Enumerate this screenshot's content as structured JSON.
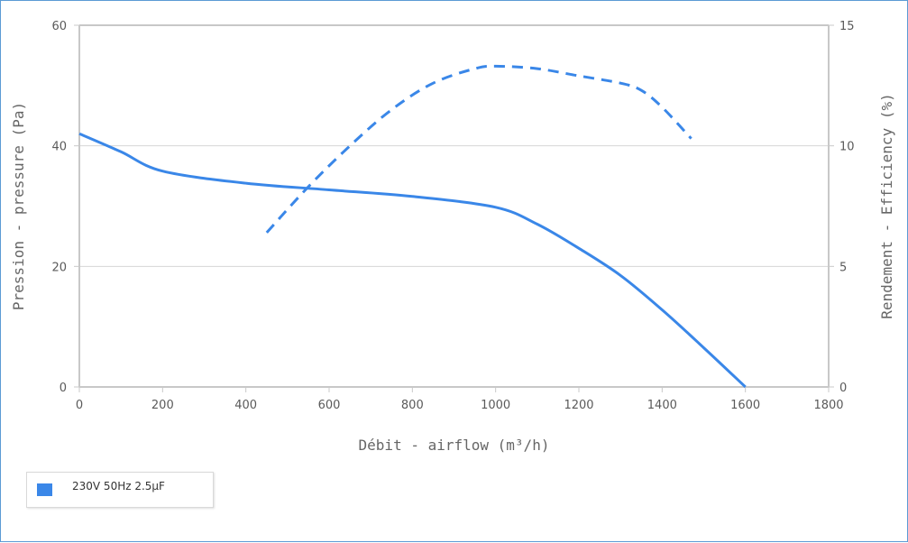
{
  "chart_data": {
    "type": "line",
    "xlabel": "Débit - airflow (m³/h)",
    "ylabel": "Pression - pressure (Pa)",
    "y2label": "Rendement - Efficiency (%)",
    "xlim": [
      0,
      1800
    ],
    "ylim": [
      0,
      60
    ],
    "y2lim": [
      0,
      15
    ],
    "x_ticks": [
      "0",
      "200",
      "400",
      "600",
      "800",
      "1000",
      "1200",
      "1400",
      "1600",
      "1800"
    ],
    "y_ticks": [
      "0",
      "20",
      "40",
      "60"
    ],
    "y2_ticks": [
      "0",
      "5",
      "10",
      "15"
    ],
    "grid": true,
    "legend_position": "bottom-left",
    "color": "#3a87e8",
    "series": [
      {
        "name": "230V 50Hz 2.5µF",
        "axis": "left",
        "style": "solid",
        "x": [
          0,
          100,
          200,
          400,
          600,
          800,
          1000,
          1100,
          1200,
          1300,
          1400,
          1500,
          1600
        ],
        "y": [
          42,
          39,
          35.8,
          33.8,
          32.7,
          31.6,
          29.8,
          27,
          23,
          18.5,
          12.8,
          6.5,
          0
        ]
      },
      {
        "name": "",
        "axis": "right",
        "style": "dashed",
        "x": [
          450,
          550,
          650,
          750,
          850,
          950,
          1000,
          1100,
          1200,
          1300,
          1350,
          1400,
          1470
        ],
        "y": [
          6.4,
          8.3,
          10,
          11.5,
          12.6,
          13.2,
          13.3,
          13.2,
          12.9,
          12.6,
          12.3,
          11.6,
          10.3
        ]
      }
    ]
  }
}
